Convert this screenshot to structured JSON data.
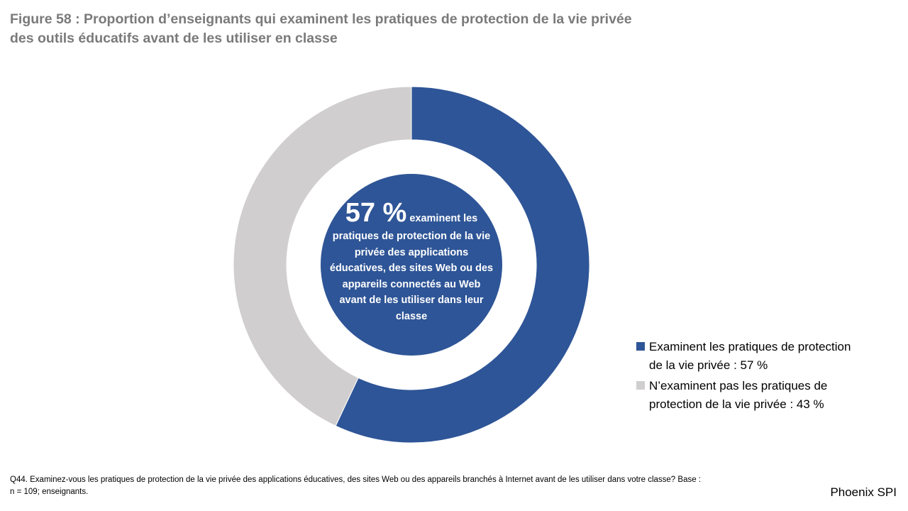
{
  "title_line1": "Figure 58 : Proportion d’enseignants qui examinent les pratiques de protection de la vie privée",
  "title_line2": "des outils éducatifs avant de les utiliser en classe",
  "center": {
    "big": "57 %",
    "lead": "examinent les",
    "rest": "pratiques de protection de la vie privée des applications éducatives, des sites Web ou des appareils connectés au Web avant de les utiliser dans leur classe"
  },
  "chart_data": {
    "type": "pie",
    "donut": true,
    "categories": [
      "Examinent les pratiques de protection de la vie privée : 57 %",
      "N’examinent pas les pratiques de protection de la vie privée : 43 %"
    ],
    "values": [
      57,
      43
    ],
    "colors": [
      "#2e5597",
      "#d0cece"
    ],
    "legend_placement": "right"
  },
  "legend": {
    "items": [
      {
        "label": "Examinent les pratiques de protection de la vie privée : 57 %",
        "color": "#2e5597"
      },
      {
        "label": "N’examinent pas les pratiques de protection de la vie privée : 43 %",
        "color": "#d0cece"
      }
    ]
  },
  "footnote": "Q44. Examinez-vous les pratiques de protection de la vie privée des applications éducatives, des sites Web ou des appareils branchés à Internet avant de les utiliser dans votre classe? Base : n = 109; enseignants.",
  "brand": "Phoenix SPI",
  "center_circle_color": "#2e5597"
}
